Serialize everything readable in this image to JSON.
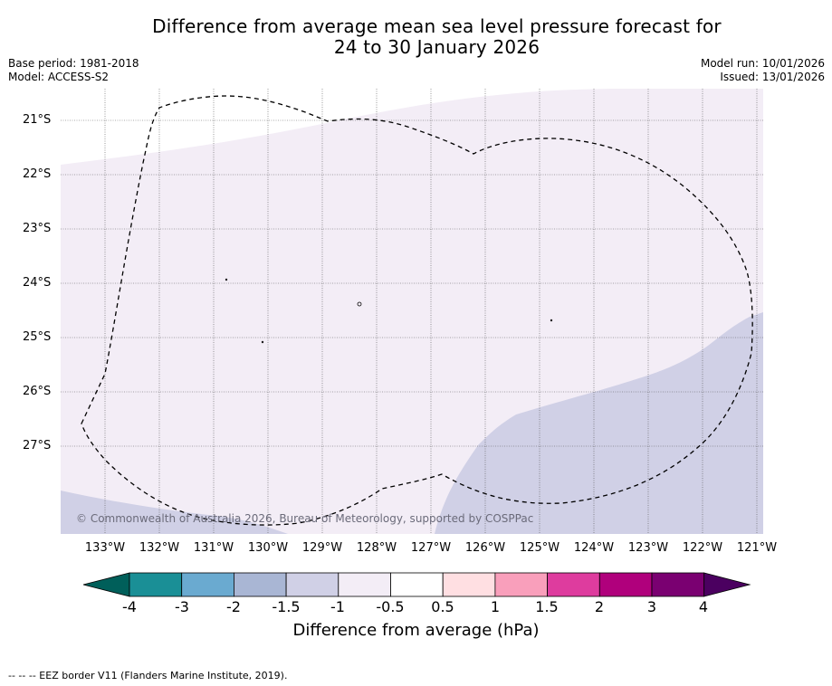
{
  "title": {
    "line1": "Difference from average mean sea level pressure forecast for",
    "line2": "24 to 30 January 2026"
  },
  "meta": {
    "base_period": "Base period: 1981-2018",
    "model": "Model: ACCESS-S2",
    "model_run": "Model run: 10/01/2026",
    "issued": "Issued: 13/01/2026"
  },
  "map": {
    "lat_labels": [
      "21°S",
      "22°S",
      "23°S",
      "24°S",
      "25°S",
      "26°S",
      "27°S"
    ],
    "lon_labels": [
      "133°W",
      "132°W",
      "131°W",
      "130°W",
      "129°W",
      "128°W",
      "127°W",
      "126°W",
      "125°W",
      "124°W",
      "123°W",
      "122°W",
      "121°W"
    ],
    "copyright": "© Commonwealth of Australia 2026, Bureau of Meteorology, supported by COSPPac"
  },
  "colorbar": {
    "ticks": [
      "-4",
      "-3",
      "-2",
      "-1.5",
      "-1",
      "-0.5",
      "0.5",
      "1",
      "1.5",
      "2",
      "3",
      "4"
    ],
    "label": "Difference from average (hPa)",
    "colors": {
      "below_min": "#005f5a",
      "bins": [
        "#1a8f96",
        "#6aaad0",
        "#a9b6d4",
        "#d0d0e6",
        "#f3edf6",
        "#ffffff",
        "#ffdfe2",
        "#f99fbb",
        "#de3c9e",
        "#b0007c",
        "#7a0071"
      ],
      "above_max": "#4b0060"
    }
  },
  "footer": {
    "legend": "--  --  -- EEZ border V11 (Flanders Marine Institute, 2019)."
  }
}
